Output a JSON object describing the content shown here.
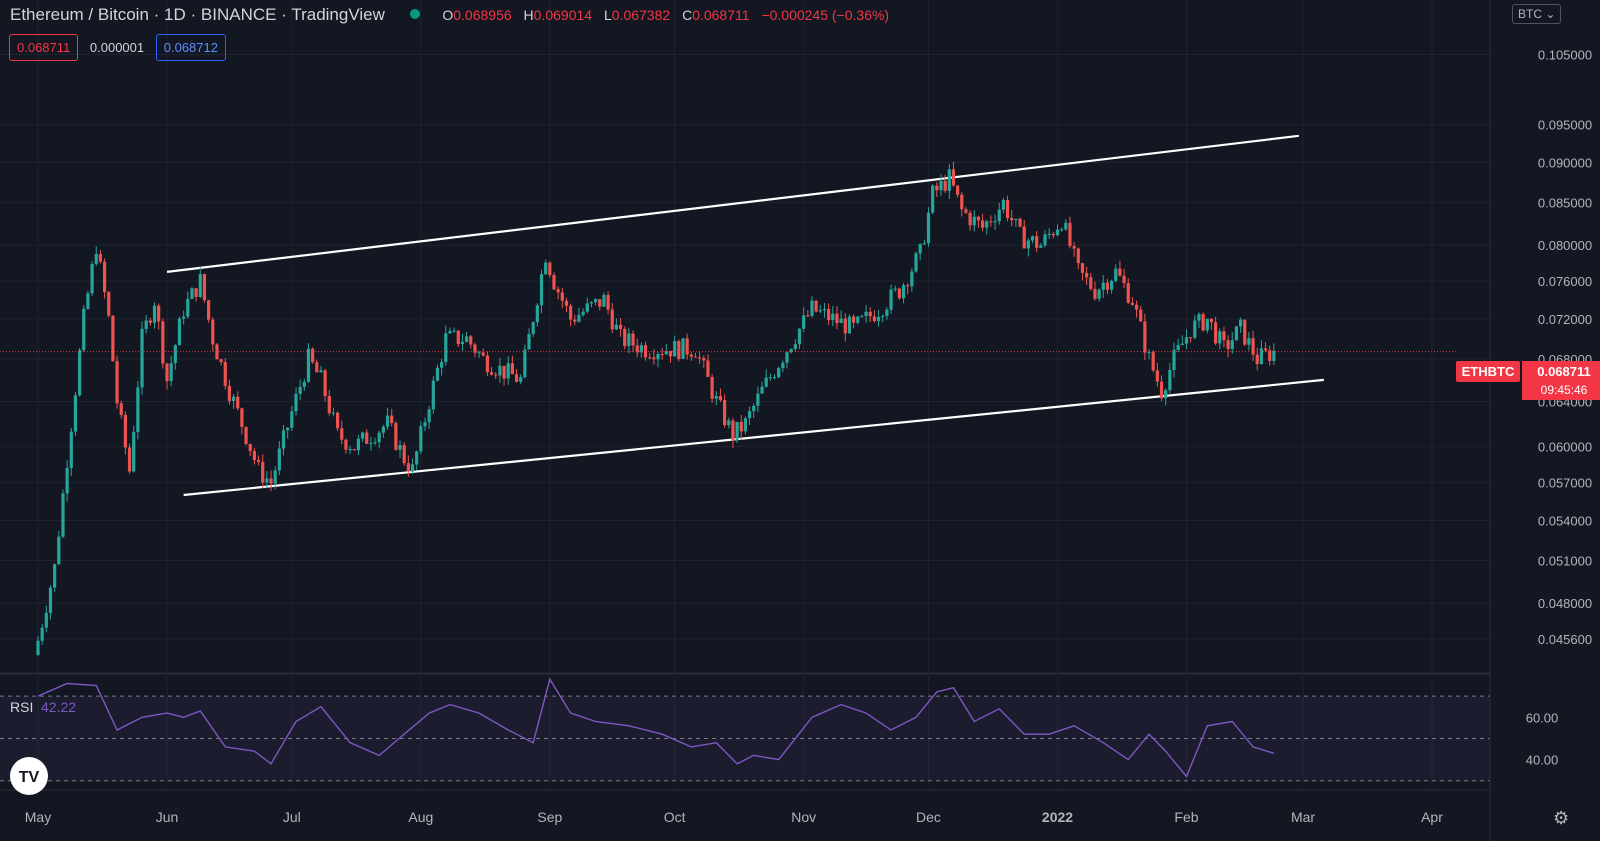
{
  "header": {
    "symbol_name": "Ethereum / Bitcoin",
    "interval": "1D",
    "exchange": "BINANCE",
    "source": "TradingView",
    "separator": "·",
    "ohlc": {
      "open_label": "O",
      "open": "0.068956",
      "high_label": "H",
      "high": "0.069014",
      "low_label": "L",
      "low": "0.067382",
      "close_label": "C",
      "close": "0.068711",
      "change": "−0.000245 (−0.36%)"
    }
  },
  "quote": {
    "bid": "0.068711",
    "spread": "0.000001",
    "ask": "0.068712"
  },
  "currency_button": "BTC ⌄",
  "ticker_label": {
    "symbol": "ETHBTC",
    "price": "0.068711",
    "countdown": "09:45:46"
  },
  "colors": {
    "background": "#131722",
    "up": "#26a69a",
    "down": "#ef5350",
    "rsi": "#7e57c2",
    "channel": "#ffffff"
  },
  "rsi_label": {
    "name": "RSI",
    "value": "42.22"
  },
  "chart_data": [
    {
      "type": "candlestick",
      "title": "Ethereum / Bitcoin · 1D · BINANCE",
      "y_scale": "log",
      "ylim": [
        0.0435,
        0.1135
      ],
      "y_ticks": [
        "0.105000",
        "0.095000",
        "0.090000",
        "0.085000",
        "0.080000",
        "0.076000",
        "0.072000",
        "0.068000",
        "0.064000",
        "0.060000",
        "0.057000",
        "0.054000",
        "0.051000",
        "0.048000",
        "0.045600"
      ],
      "x_ticks": [
        "May",
        "Jun",
        "Jul",
        "Aug",
        "Sep",
        "Oct",
        "Nov",
        "Dec",
        "2022",
        "Feb",
        "Mar",
        "Apr"
      ],
      "last_price": 0.068711,
      "close_series": {
        "dates": [
          "2021-05-01",
          "2021-05-05",
          "2021-05-08",
          "2021-05-12",
          "2021-05-15",
          "2021-05-18",
          "2021-05-20",
          "2021-05-23",
          "2021-05-26",
          "2021-05-29",
          "2021-06-01",
          "2021-06-05",
          "2021-06-09",
          "2021-06-12",
          "2021-06-16",
          "2021-06-20",
          "2021-06-23",
          "2021-06-26",
          "2021-07-01",
          "2021-07-05",
          "2021-07-08",
          "2021-07-12",
          "2021-07-16",
          "2021-07-20",
          "2021-07-24",
          "2021-07-28",
          "2021-07-30",
          "2021-08-03",
          "2021-08-07",
          "2021-08-12",
          "2021-08-16",
          "2021-08-20",
          "2021-08-25",
          "2021-08-31",
          "2021-09-02",
          "2021-09-06",
          "2021-09-10",
          "2021-09-14",
          "2021-09-18",
          "2021-09-24",
          "2021-10-01",
          "2021-10-06",
          "2021-10-11",
          "2021-10-15",
          "2021-10-18",
          "2021-10-22",
          "2021-10-28",
          "2021-11-03",
          "2021-11-08",
          "2021-11-13",
          "2021-11-19",
          "2021-11-24",
          "2021-11-29",
          "2021-12-02",
          "2021-12-06",
          "2021-12-09",
          "2021-12-14",
          "2021-12-19",
          "2021-12-23",
          "2021-12-28",
          "2022-01-02",
          "2022-01-06",
          "2022-01-10",
          "2022-01-15",
          "2022-01-19",
          "2022-01-23",
          "2022-01-26",
          "2022-01-29",
          "2022-02-02",
          "2022-02-06",
          "2022-02-10",
          "2022-02-14",
          "2022-02-18",
          "2022-02-22"
        ],
        "close": [
          0.0455,
          0.0505,
          0.059,
          0.072,
          0.08,
          0.072,
          0.064,
          0.058,
          0.07,
          0.074,
          0.066,
          0.073,
          0.076,
          0.07,
          0.065,
          0.061,
          0.058,
          0.057,
          0.063,
          0.068,
          0.066,
          0.061,
          0.06,
          0.061,
          0.062,
          0.059,
          0.058,
          0.064,
          0.07,
          0.07,
          0.068,
          0.067,
          0.066,
          0.079,
          0.076,
          0.072,
          0.073,
          0.074,
          0.07,
          0.069,
          0.069,
          0.069,
          0.064,
          0.061,
          0.062,
          0.065,
          0.069,
          0.073,
          0.072,
          0.071,
          0.073,
          0.075,
          0.079,
          0.086,
          0.088,
          0.084,
          0.082,
          0.085,
          0.081,
          0.08,
          0.083,
          0.077,
          0.075,
          0.077,
          0.074,
          0.068,
          0.065,
          0.068,
          0.071,
          0.072,
          0.069,
          0.071,
          0.068,
          0.0687
        ]
      },
      "channel": {
        "upper": {
          "from": [
            "2021-06-01",
            0.077
          ],
          "to": [
            "2022-02-28",
            0.0935
          ]
        },
        "lower": {
          "from": [
            "2021-06-05",
            0.056
          ],
          "to": [
            "2022-03-06",
            0.066
          ]
        }
      }
    },
    {
      "type": "line",
      "title": "RSI",
      "ylim": [
        28,
        80
      ],
      "y_ticks": [
        60,
        40
      ],
      "bands": [
        30,
        50,
        70
      ],
      "series": [
        {
          "name": "RSI",
          "dates": [
            "2021-05-01",
            "2021-05-08",
            "2021-05-15",
            "2021-05-20",
            "2021-05-26",
            "2021-06-01",
            "2021-06-05",
            "2021-06-09",
            "2021-06-15",
            "2021-06-22",
            "2021-06-26",
            "2021-07-02",
            "2021-07-08",
            "2021-07-15",
            "2021-07-22",
            "2021-07-28",
            "2021-08-03",
            "2021-08-08",
            "2021-08-15",
            "2021-08-22",
            "2021-08-28",
            "2021-09-01",
            "2021-09-06",
            "2021-09-12",
            "2021-09-20",
            "2021-09-28",
            "2021-10-05",
            "2021-10-11",
            "2021-10-16",
            "2021-10-20",
            "2021-10-26",
            "2021-11-03",
            "2021-11-10",
            "2021-11-16",
            "2021-11-22",
            "2021-11-28",
            "2021-12-03",
            "2021-12-07",
            "2021-12-12",
            "2021-12-18",
            "2021-12-24",
            "2021-12-30",
            "2022-01-05",
            "2022-01-12",
            "2022-01-18",
            "2022-01-23",
            "2022-01-27",
            "2022-02-01",
            "2022-02-06",
            "2022-02-12",
            "2022-02-17",
            "2022-02-22"
          ],
          "values": [
            70,
            76,
            75,
            54,
            60,
            62,
            60,
            63,
            46,
            44,
            38,
            58,
            65,
            48,
            42,
            52,
            62,
            66,
            62,
            54,
            48,
            78,
            62,
            58,
            56,
            52,
            46,
            48,
            38,
            42,
            40,
            60,
            66,
            62,
            54,
            60,
            72,
            74,
            58,
            64,
            52,
            52,
            56,
            48,
            40,
            52,
            44,
            32,
            56,
            58,
            46,
            43
          ]
        }
      ]
    }
  ]
}
